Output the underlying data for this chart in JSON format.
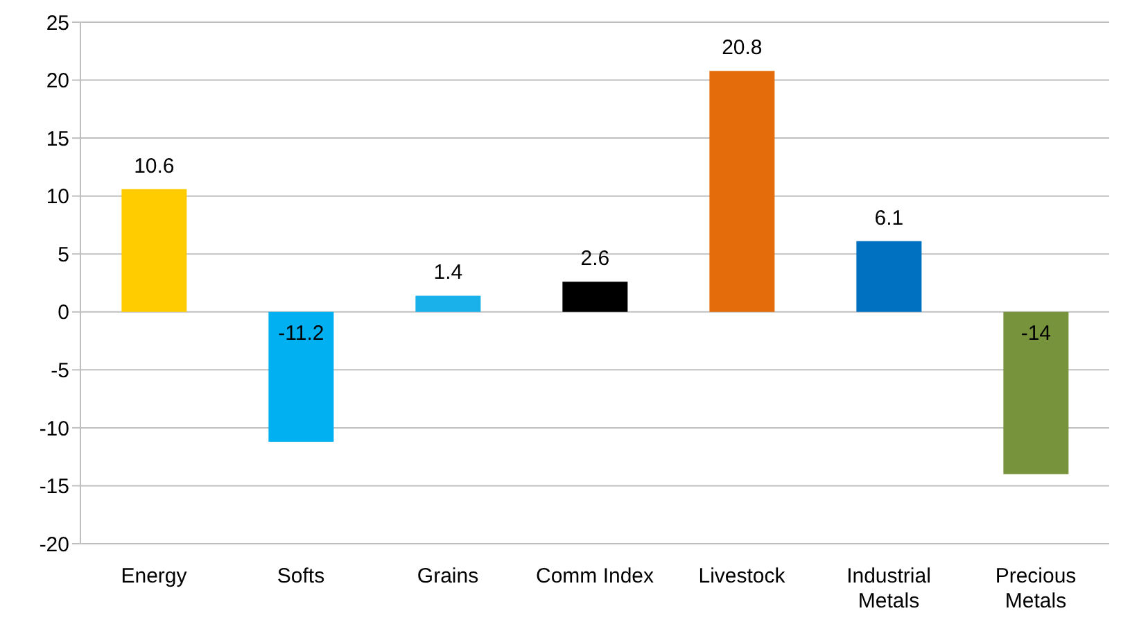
{
  "chart_data": {
    "type": "bar",
    "categories": [
      "Energy",
      "Softs",
      "Grains",
      "Comm Index",
      "Livestock",
      "Industrial Metals",
      "Precious Metals"
    ],
    "values": [
      10.6,
      -11.2,
      1.4,
      2.6,
      20.8,
      6.1,
      -14
    ],
    "colors": [
      "#ffcc00",
      "#00b0f0",
      "#1ab0ea",
      "#000000",
      "#e46c0a",
      "#0070c0",
      "#77933c"
    ],
    "ylim": [
      -20,
      25
    ],
    "yticks": [
      -20,
      -15,
      -10,
      -5,
      0,
      5,
      10,
      15,
      20,
      25
    ],
    "grid": "y",
    "data_labels": true,
    "legend": false
  }
}
